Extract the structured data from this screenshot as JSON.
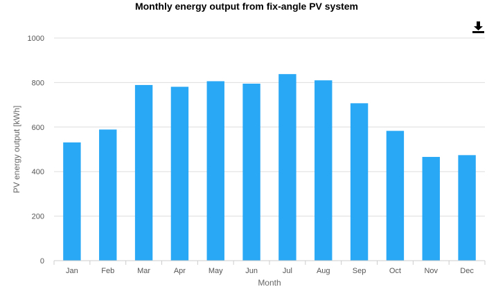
{
  "chart_data": {
    "type": "bar",
    "title": "Monthly energy output from fix-angle PV system",
    "xlabel": "Month",
    "ylabel": "PV energy output [kWh]",
    "categories": [
      "Jan",
      "Feb",
      "Mar",
      "Apr",
      "May",
      "Jun",
      "Jul",
      "Aug",
      "Sep",
      "Oct",
      "Nov",
      "Dec"
    ],
    "values": [
      531,
      589,
      789,
      781,
      806,
      795,
      838,
      810,
      707,
      583,
      466,
      474
    ],
    "ylim": [
      0,
      1000
    ],
    "yticks": [
      0,
      200,
      400,
      600,
      800,
      1000
    ],
    "grid": true,
    "legend": "none",
    "bar_color": "#29a8f5"
  },
  "toolbar": {
    "download_icon": "download-icon"
  }
}
